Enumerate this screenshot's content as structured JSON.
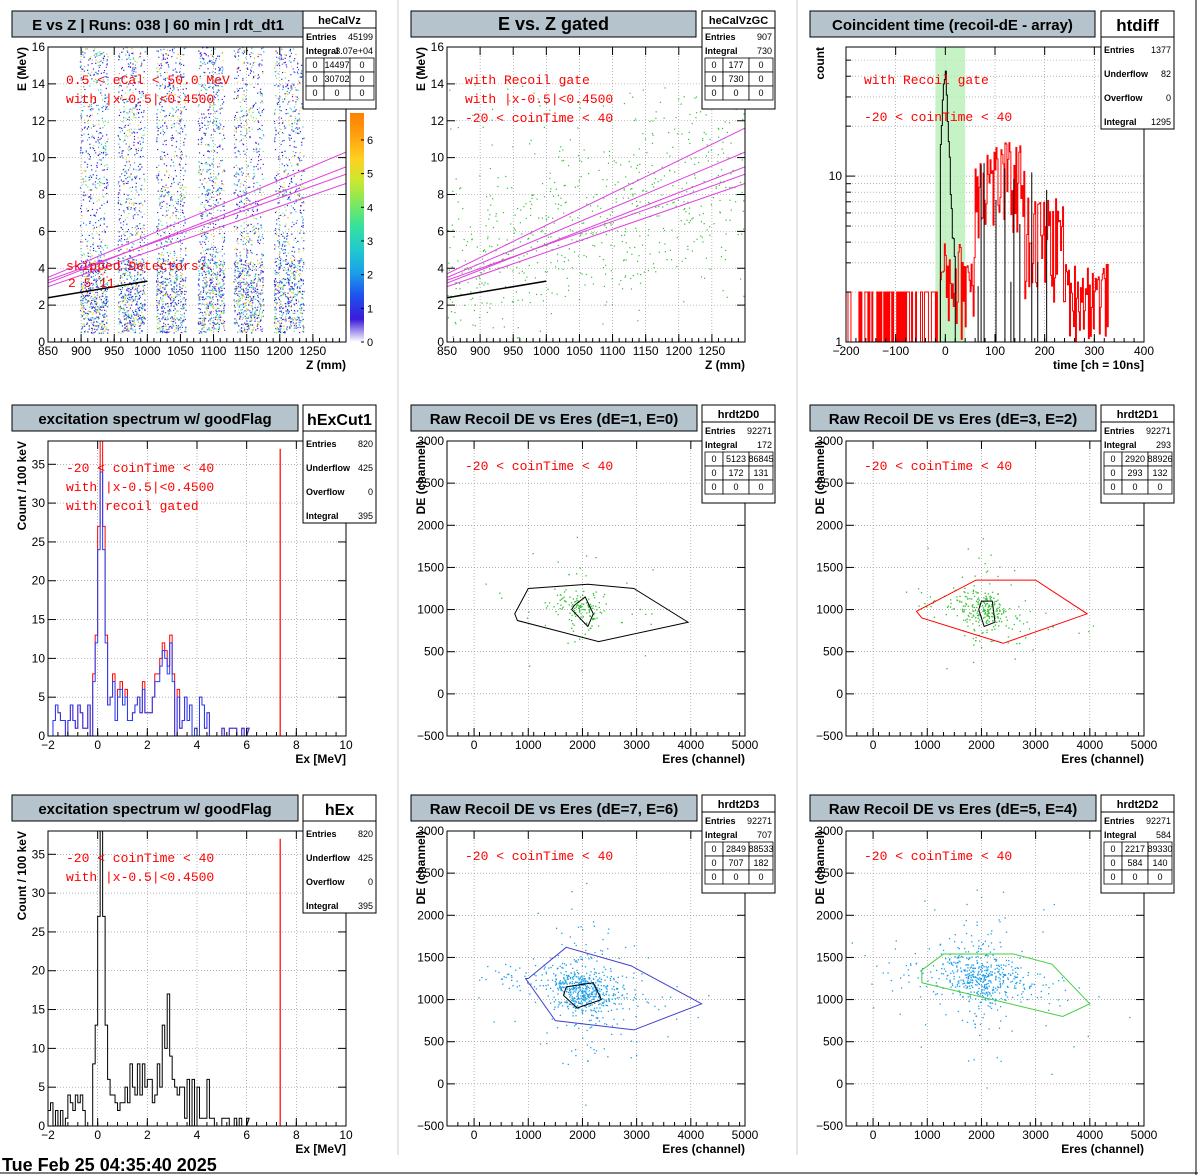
{
  "footer": "Tue Feb 25 04:35:40 2025",
  "colors": {
    "title_box": "#b4c3cc",
    "red": "#ff0000",
    "magenta": "#e040e0",
    "green_gate": "#b8f0b8",
    "blue": "#2040ff",
    "black": "#000000"
  },
  "chart_data": [
    {
      "id": "heCalVz",
      "type": "heatmap",
      "title": "E vs Z | Runs: 038 | 60 min | rdt_dt1",
      "xlabel": "Z (mm)",
      "ylabel": "E (MeV)",
      "xlim": [
        850,
        1300
      ],
      "ylim": [
        0,
        16
      ],
      "xticks": [
        850,
        900,
        950,
        1000,
        1050,
        1100,
        1150,
        1200,
        1250
      ],
      "yticks": [
        0,
        2,
        4,
        6,
        8,
        10,
        12,
        14,
        16
      ],
      "grid": true,
      "colorbar": {
        "min": 0,
        "max": 6.8,
        "ticks": [
          0,
          1,
          2,
          3,
          4,
          5,
          6
        ]
      },
      "detector_bands": [
        [
          898,
          940
        ],
        [
          955,
          996
        ],
        [
          1013,
          1058
        ],
        [
          1076,
          1116
        ],
        [
          1130,
          1175
        ],
        [
          1191,
          1236
        ]
      ],
      "annotations": [
        "0.5 < eCal < 50.0 MeV",
        "with |x-0.5|<0.4500",
        "skipped Detectors:",
        "2    5    11"
      ],
      "stats": {
        "name": "heCalVz",
        "Entries": "45199",
        "Integral": "3.07e+04",
        "grid": [
          [
            "0",
            "14497",
            "0"
          ],
          [
            "0",
            "30702",
            "0"
          ],
          [
            "0",
            "0",
            "0"
          ]
        ]
      }
    },
    {
      "id": "heCalVzGC",
      "type": "scatter",
      "title": "E vs. Z gated",
      "xlabel": "Z (mm)",
      "ylabel": "E (MeV)",
      "xlim": [
        850,
        1300
      ],
      "ylim": [
        0,
        16
      ],
      "xticks": [
        850,
        900,
        950,
        1000,
        1050,
        1100,
        1150,
        1200,
        1250
      ],
      "yticks": [
        0,
        2,
        4,
        6,
        8,
        10,
        12,
        14,
        16
      ],
      "grid": true,
      "annotations": [
        "with Recoil gate",
        "with |x-0.5|<0.4500",
        "-20 < coinTime < 40"
      ],
      "stats": {
        "name": "heCalVzGC",
        "Entries": "907",
        "Integral": "730",
        "grid": [
          [
            "0",
            "177",
            "0"
          ],
          [
            "0",
            "730",
            "0"
          ],
          [
            "0",
            "0",
            "0"
          ]
        ]
      }
    },
    {
      "id": "htdiff",
      "type": "histogram",
      "title": "Coincident time (recoil-dE - array)",
      "xlabel": "time [ch = 10ns]",
      "ylabel": "count",
      "xlim": [
        -200,
        400
      ],
      "ylim": [
        1,
        60
      ],
      "ylog": true,
      "xticks": [
        -200,
        -100,
        0,
        100,
        200,
        300,
        400
      ],
      "yticks": [
        1,
        10
      ],
      "grid": true,
      "gate": [
        -20,
        40
      ],
      "annotations": [
        "with Recoil gate",
        "-20 < coinTime < 40"
      ],
      "stats": {
        "name": "htdiff",
        "rows": [
          [
            "Entries",
            "1377"
          ],
          [
            "Underflow",
            "82"
          ],
          [
            "Overflow",
            "0"
          ],
          [
            "Integral",
            "1295"
          ]
        ]
      }
    },
    {
      "id": "hExCut1",
      "type": "histogram",
      "title": "excitation spectrum w/ goodFlag",
      "xlabel": "Ex [MeV]",
      "ylabel": "Count /  100 keV",
      "xlim": [
        -2,
        10
      ],
      "ylim": [
        0,
        38
      ],
      "xticks": [
        -2,
        0,
        2,
        4,
        6,
        8,
        10
      ],
      "yticks": [
        0,
        5,
        10,
        15,
        20,
        25,
        30,
        35
      ],
      "grid": true,
      "marker_x": 7.35,
      "annotations": [
        "-20 < coinTime < 40",
        "with |x-0.5|<0.4500",
        "with recoil gated"
      ],
      "stats": {
        "name": "hExCut1",
        "rows": [
          [
            "Entries",
            "820"
          ],
          [
            "Underflow",
            "425"
          ],
          [
            "Overflow",
            "0"
          ],
          [
            "Integral",
            "395"
          ]
        ]
      }
    },
    {
      "id": "hrdt2D0",
      "type": "scatter",
      "title": "Raw Recoil DE vs Eres (dE=1, E=0)",
      "xlabel": "Eres (channel)",
      "ylabel": "DE (channel)",
      "xlim": [
        -500,
        5000
      ],
      "ylim": [
        -500,
        3000
      ],
      "xticks": [
        0,
        1000,
        2000,
        3000,
        4000,
        5000
      ],
      "yticks": [
        -500,
        0,
        500,
        1000,
        1500,
        2000,
        2500,
        3000
      ],
      "grid": true,
      "annotations": [
        "-20 < coinTime < 40"
      ],
      "stats": {
        "name": "hrdt2D0",
        "Entries": "92271",
        "Integral": "172",
        "grid": [
          [
            "0",
            "5123",
            "86845"
          ],
          [
            "0",
            "172",
            "131"
          ],
          [
            "0",
            "0",
            "0"
          ]
        ]
      }
    },
    {
      "id": "hrdt2D1",
      "type": "scatter",
      "title": "Raw Recoil DE vs Eres (dE=3, E=2)",
      "xlabel": "Eres (channel)",
      "ylabel": "DE (channel)",
      "xlim": [
        -500,
        5000
      ],
      "ylim": [
        -500,
        3000
      ],
      "xticks": [
        0,
        1000,
        2000,
        3000,
        4000,
        5000
      ],
      "yticks": [
        -500,
        0,
        500,
        1000,
        1500,
        2000,
        2500,
        3000
      ],
      "grid": true,
      "annotations": [
        "-20 < coinTime < 40"
      ],
      "stats": {
        "name": "hrdt2D1",
        "Entries": "92271",
        "Integral": "293",
        "grid": [
          [
            "0",
            "2920",
            "88926"
          ],
          [
            "0",
            "293",
            "132"
          ],
          [
            "0",
            "0",
            "0"
          ]
        ]
      }
    },
    {
      "id": "hEx",
      "type": "histogram",
      "title": "excitation spectrum w/ goodFlag",
      "xlabel": "Ex [MeV]",
      "ylabel": "Count /  100 keV",
      "xlim": [
        -2,
        10
      ],
      "ylim": [
        0,
        38
      ],
      "xticks": [
        -2,
        0,
        2,
        4,
        6,
        8,
        10
      ],
      "yticks": [
        0,
        5,
        10,
        15,
        20,
        25,
        30,
        35
      ],
      "grid": true,
      "marker_x": 7.35,
      "annotations": [
        "-20 < coinTime < 40",
        "with |x-0.5|<0.4500"
      ],
      "stats": {
        "name": "hEx",
        "rows": [
          [
            "Entries",
            "820"
          ],
          [
            "Underflow",
            "425"
          ],
          [
            "Overflow",
            "0"
          ],
          [
            "Integral",
            "395"
          ]
        ]
      }
    },
    {
      "id": "hrdt2D3",
      "type": "scatter",
      "title": "Raw Recoil DE vs Eres (dE=7, E=6)",
      "xlabel": "Eres (channel)",
      "ylabel": "DE (channel)",
      "xlim": [
        -500,
        5000
      ],
      "ylim": [
        -500,
        3000
      ],
      "xticks": [
        0,
        1000,
        2000,
        3000,
        4000,
        5000
      ],
      "yticks": [
        -500,
        0,
        500,
        1000,
        1500,
        2000,
        2500,
        3000
      ],
      "grid": true,
      "annotations": [
        "-20 < coinTime < 40"
      ],
      "stats": {
        "name": "hrdt2D3",
        "Entries": "92271",
        "Integral": "707",
        "grid": [
          [
            "0",
            "2849",
            "88533"
          ],
          [
            "0",
            "707",
            "182"
          ],
          [
            "0",
            "0",
            "0"
          ]
        ]
      }
    },
    {
      "id": "hrdt2D2",
      "type": "scatter",
      "title": "Raw Recoil DE vs Eres (dE=5, E=4)",
      "xlabel": "Eres (channel)",
      "ylabel": "DE (channel)",
      "xlim": [
        -500,
        5000
      ],
      "ylim": [
        -500,
        3000
      ],
      "xticks": [
        0,
        1000,
        2000,
        3000,
        4000,
        5000
      ],
      "yticks": [
        -500,
        0,
        500,
        1000,
        1500,
        2000,
        2500,
        3000
      ],
      "grid": true,
      "annotations": [
        "-20 < coinTime < 40"
      ],
      "stats": {
        "name": "hrdt2D2",
        "Entries": "92271",
        "Integral": "584",
        "grid": [
          [
            "0",
            "2217",
            "89330"
          ],
          [
            "0",
            "584",
            "140"
          ],
          [
            "0",
            "0",
            "0"
          ]
        ]
      }
    }
  ]
}
